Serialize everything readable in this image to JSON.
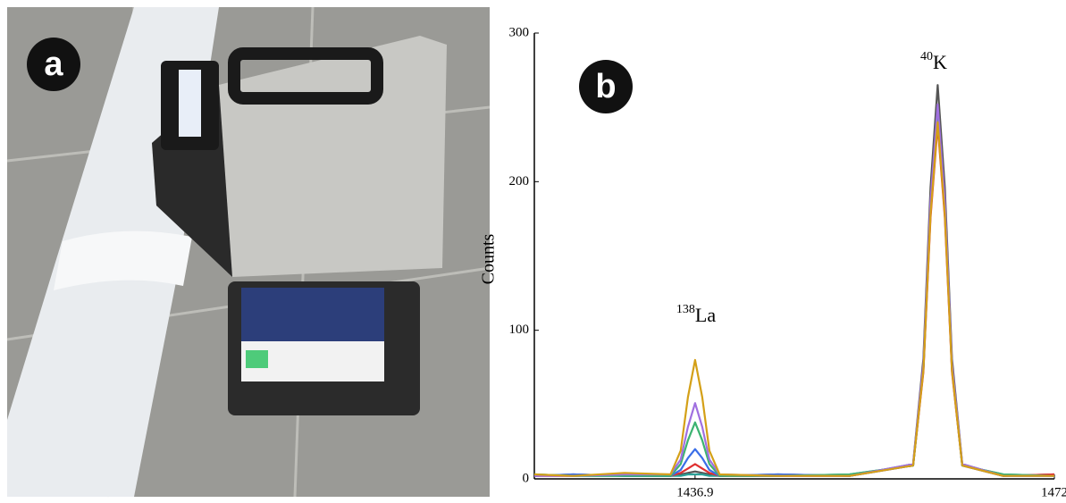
{
  "photo": {
    "panel_label": "a"
  },
  "chart_data": {
    "type": "line",
    "panel_label": "b",
    "y_label": "Counts",
    "peak_labels": [
      {
        "superscript": "138",
        "text": "La"
      },
      {
        "superscript": "40",
        "text": "K"
      }
    ],
    "x": [
      1421.2,
      1425,
      1430,
      1434.5,
      1435.5,
      1436.2,
      1436.9,
      1437.6,
      1438.3,
      1439.3,
      1445,
      1452,
      1458.2,
      1459.2,
      1459.9,
      1460.6,
      1461.3,
      1462.0,
      1463.0,
      1467,
      1472
    ],
    "series": [
      {
        "color": "#555555",
        "values": [
          2,
          3,
          2,
          2,
          3,
          4,
          5,
          4,
          3,
          2,
          3,
          2,
          10,
          81,
          196,
          265,
          196,
          81,
          10,
          2,
          3
        ]
      },
      {
        "color": "#2aa198",
        "values": [
          3,
          2,
          2,
          2,
          2,
          3,
          3,
          3,
          2,
          2,
          2,
          3,
          9,
          74,
          182,
          246,
          182,
          74,
          9,
          3,
          2
        ]
      },
      {
        "color": "#e03030",
        "values": [
          2,
          2,
          3,
          2,
          4,
          7,
          10,
          7,
          4,
          2,
          2,
          2,
          9,
          72,
          176,
          238,
          176,
          72,
          9,
          2,
          3
        ]
      },
      {
        "color": "#3a6ee8",
        "values": [
          2,
          3,
          2,
          2,
          6,
          14,
          20,
          14,
          6,
          2,
          3,
          2,
          9,
          75,
          183,
          247,
          183,
          75,
          9,
          2,
          2
        ]
      },
      {
        "color": "#3cb371",
        "values": [
          3,
          2,
          2,
          2,
          10,
          26,
          38,
          26,
          10,
          2,
          2,
          3,
          9,
          76,
          185,
          250,
          185,
          76,
          9,
          3,
          2
        ]
      },
      {
        "color": "#a070e0",
        "values": [
          2,
          2,
          3,
          3,
          13,
          35,
          51,
          35,
          13,
          3,
          2,
          2,
          10,
          77,
          187,
          252,
          187,
          77,
          10,
          2,
          2
        ]
      },
      {
        "color": "#d4a017",
        "values": [
          3,
          2,
          4,
          3,
          19,
          55,
          80,
          55,
          19,
          3,
          2,
          2,
          9,
          73,
          178,
          240,
          178,
          73,
          9,
          2,
          2
        ]
      }
    ],
    "xlim": [
      1421.2,
      1472
    ],
    "xticks": [
      1436.9,
      1472
    ],
    "ylim": [
      0,
      300
    ],
    "yticks": [
      0,
      100,
      200,
      300
    ]
  }
}
